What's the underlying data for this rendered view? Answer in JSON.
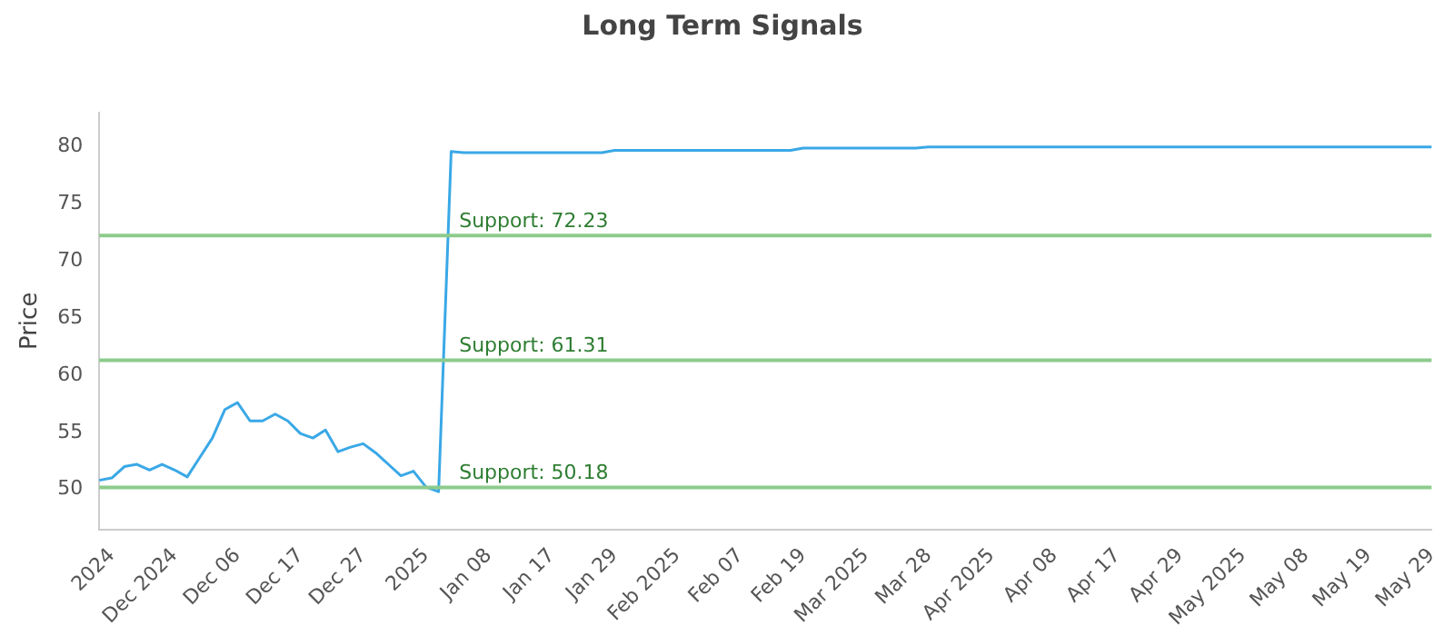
{
  "chart_data": {
    "type": "line",
    "title": "Long Term Signals",
    "ylabel": "Price",
    "categories": [
      null,
      "2024",
      null,
      null,
      null,
      null,
      "Dec 2024",
      null,
      null,
      null,
      null,
      "Dec 06",
      null,
      null,
      null,
      null,
      "Dec 17",
      null,
      null,
      null,
      null,
      "Dec 27",
      null,
      null,
      null,
      null,
      "2025",
      null,
      null,
      null,
      null,
      "Jan 08",
      null,
      null,
      null,
      null,
      "Jan 17",
      null,
      null,
      null,
      null,
      "Jan 29",
      null,
      null,
      null,
      null,
      "Feb 2025",
      null,
      null,
      null,
      null,
      "Feb 07",
      null,
      null,
      null,
      null,
      "Feb 19",
      null,
      null,
      null,
      null,
      "Mar 2025",
      null,
      null,
      null,
      null,
      "Mar 28",
      null,
      null,
      null,
      null,
      "Apr 2025",
      null,
      null,
      null,
      null,
      "Apr 08",
      null,
      null,
      null,
      null,
      "Apr 17",
      null,
      null,
      null,
      null,
      "Apr 29",
      null,
      null,
      null,
      null,
      "May 2025",
      null,
      null,
      null,
      null,
      "May 08",
      null,
      null,
      null,
      null,
      "May 19",
      null,
      null,
      null,
      null,
      "May 29"
    ],
    "series": [
      {
        "color": "#3aa8e6",
        "values": [
          50.8,
          51,
          52,
          52.2,
          51.7,
          52.2,
          51.7,
          51.1,
          52.8,
          54.5,
          57,
          57.6,
          56,
          56,
          56.6,
          56,
          54.9,
          54.5,
          55.2,
          53.3,
          53.7,
          54,
          53.2,
          52.2,
          51.2,
          51.6,
          50.2,
          49.8,
          79.6,
          79.5,
          79.5,
          79.5,
          79.5,
          79.5,
          79.5,
          79.5,
          79.5,
          79.5,
          79.5,
          79.5,
          79.5,
          79.7,
          79.7,
          79.7,
          79.7,
          79.7,
          79.7,
          79.7,
          79.7,
          79.7,
          79.7,
          79.7,
          79.7,
          79.7,
          79.7,
          79.7,
          79.9,
          79.9,
          79.9,
          79.9,
          79.9,
          79.9,
          79.9,
          79.9,
          79.9,
          79.9,
          80,
          80,
          80,
          80,
          80,
          80,
          80,
          80,
          80,
          80,
          80,
          80,
          80,
          80,
          80,
          80,
          80,
          80,
          80,
          80,
          80,
          80,
          80,
          80,
          80,
          80,
          80,
          80,
          80,
          80,
          80,
          80,
          80,
          80,
          80,
          80,
          80,
          80,
          80,
          80,
          80
        ]
      }
    ],
    "ylim": [
      46.5,
      83
    ],
    "yticks": [
      50,
      55,
      60,
      65,
      70,
      75,
      80
    ],
    "grid": false,
    "legend": false,
    "marker": "none",
    "ref_lines": [
      {
        "axis": "y",
        "value": 72.23,
        "label": "Support: 72.23",
        "color": "#8ccb8c"
      },
      {
        "axis": "y",
        "value": 61.31,
        "label": "Support: 61.31",
        "color": "#8ccb8c"
      },
      {
        "axis": "y",
        "value": 50.18,
        "label": "Support: 50.18",
        "color": "#8ccb8c"
      }
    ]
  }
}
